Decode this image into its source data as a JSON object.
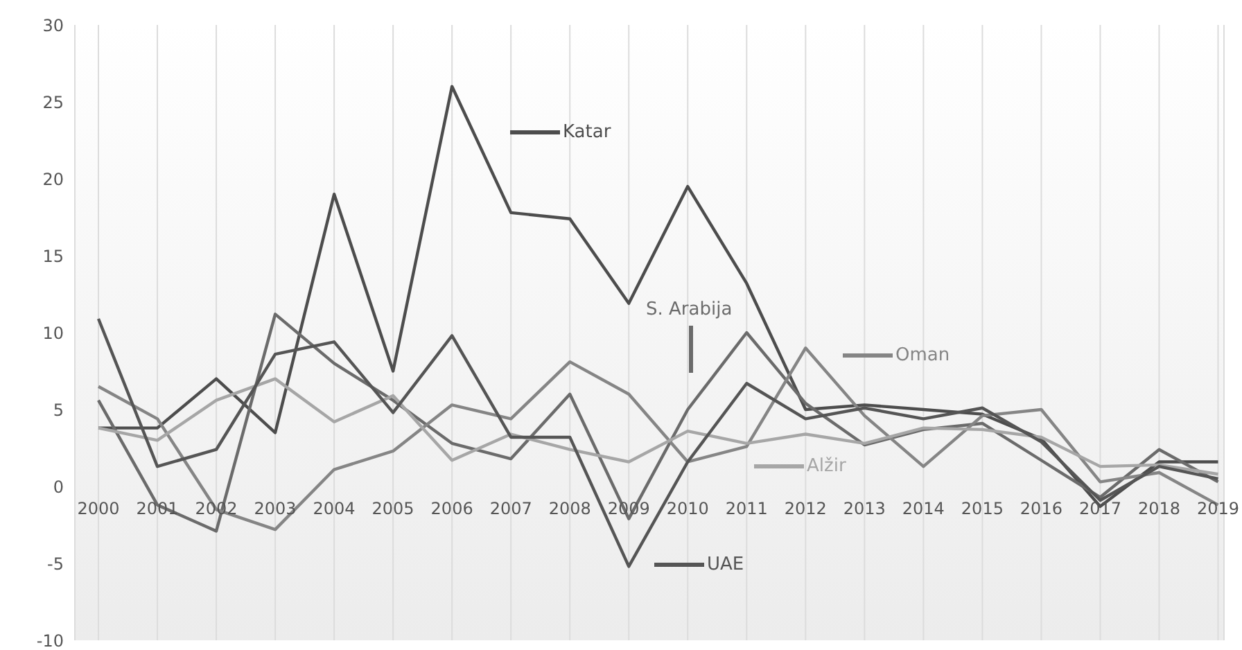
{
  "chart_data": {
    "type": "line",
    "categories": [
      "2000",
      "2001",
      "2002",
      "2003",
      "2004",
      "2005",
      "2006",
      "2007",
      "2008",
      "2009",
      "2010",
      "2011",
      "2012",
      "2013",
      "2014",
      "2015",
      "2016",
      "2017",
      "2018",
      "2019"
    ],
    "series": [
      {
        "name": "Katar",
        "color": "#4d4d4d",
        "values": [
          3.8,
          3.8,
          7.0,
          3.5,
          19.0,
          7.5,
          26.0,
          17.8,
          17.4,
          11.9,
          19.5,
          13.2,
          5.0,
          5.3,
          5.0,
          4.7,
          3.1,
          -1.3,
          1.6,
          1.6
        ]
      },
      {
        "name": "S. Arabija",
        "color": "#6b6b6b",
        "values": [
          5.6,
          -1.2,
          -2.9,
          11.2,
          8.0,
          5.6,
          2.8,
          1.8,
          6.0,
          -2.1,
          5.0,
          10.0,
          5.4,
          2.7,
          3.7,
          4.1,
          1.7,
          -0.7,
          2.4,
          0.3
        ]
      },
      {
        "name": "Oman",
        "color": "#858585",
        "values": [
          6.5,
          4.4,
          -1.5,
          -2.8,
          1.1,
          2.3,
          5.3,
          4.4,
          8.1,
          6.0,
          1.6,
          2.6,
          9.0,
          4.6,
          1.3,
          4.6,
          5.0,
          0.3,
          0.9,
          -1.2
        ]
      },
      {
        "name": "Alžir",
        "color": "#a6a6a6",
        "values": [
          3.8,
          3.0,
          5.6,
          7.0,
          4.2,
          5.9,
          1.7,
          3.4,
          2.4,
          1.6,
          3.6,
          2.8,
          3.4,
          2.8,
          3.8,
          3.7,
          3.2,
          1.3,
          1.4,
          0.8
        ]
      },
      {
        "name": "UAE",
        "color": "#555555",
        "values": [
          10.9,
          1.3,
          2.4,
          8.6,
          9.4,
          4.8,
          9.8,
          3.2,
          3.2,
          -5.2,
          1.6,
          6.7,
          4.4,
          5.1,
          4.4,
          5.1,
          2.9,
          -0.9,
          1.3,
          0.5
        ]
      }
    ],
    "ylim": [
      -10,
      30
    ],
    "yticks": [
      -10,
      -5,
      0,
      5,
      10,
      15,
      20,
      25,
      30
    ],
    "grid": "x",
    "legend": "bottom right",
    "marker": "none",
    "line_style": "solid"
  }
}
